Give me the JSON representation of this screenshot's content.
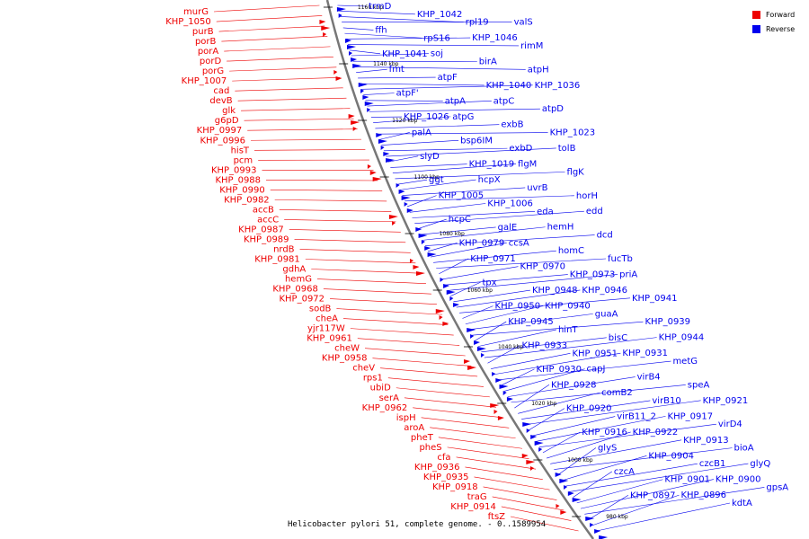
{
  "caption": "Helicobacter pylori 51, complete genome. - 0..1589954",
  "legend": {
    "forward_label": "Forward",
    "reverse_label": "Reverse",
    "forward_color": "#ee0000",
    "reverse_color": "#0000ee"
  },
  "colors": {
    "backbone": "#777777",
    "tick_label": "#000000"
  },
  "position_labels": [
    "1160 kbp",
    "1140 kbp",
    "1120 kbp",
    "1100 kbp",
    "1080 kbp",
    "1060 kbp",
    "1040 kbp",
    "1020 kbp",
    "1000 kbp",
    "980 kbp"
  ],
  "forward_genes": [
    "murG",
    "KHP_1050",
    "purB",
    "porB",
    "porA",
    "porD",
    "porG",
    "KHP_1007",
    "cad",
    "devB",
    "glk",
    "g6pD",
    "KHP_0997",
    "KHP_0996",
    "hisT",
    "pcm",
    "KHP_0993",
    "KHP_0988",
    "KHP_0990",
    "KHP_0982",
    "accB",
    "accC",
    "KHP_0987",
    "KHP_0989",
    "nrdB",
    "KHP_0981",
    "gdhA",
    "hemG",
    "KHP_0968",
    "KHP_0972",
    "sodB",
    "cheA",
    "yjr117W",
    "KHP_0961",
    "cheW",
    "KHP_0958",
    "cheV",
    "rps1",
    "ubiD",
    "serA",
    "KHP_0962",
    "ispH",
    "aroA",
    "pheT",
    "pheS",
    "cfa",
    "KHP_0936",
    "KHP_0935",
    "KHP_0918",
    "traG",
    "KHP_0914",
    "ftsZ"
  ],
  "reverse_genes": [
    "trmD",
    "KHP_1042",
    "rpl19",
    "valS",
    "ffh",
    "rpS16",
    "KHP_1046",
    "rimM",
    "KHP_1041",
    "soj",
    "birA",
    "atpH",
    "fmt",
    "atpF",
    "KHP_1040",
    "KHP_1036",
    "atpF'",
    "atpA",
    "atpC",
    "atpD",
    "KHP_1026",
    "atpG",
    "exbB",
    "KHP_1023",
    "palA",
    "bsp6IM",
    "exbD",
    "tolB",
    "slyD",
    "KHP_1019",
    "flgM",
    "flgK",
    "ggt",
    "hcpX",
    "uvrB",
    "horH",
    "KHP_1005",
    "KHP_1006",
    "eda",
    "edd",
    "hcpC",
    "galE",
    "hemH",
    "dcd",
    "KHP_0979",
    "ccsA",
    "homC",
    "fucTb",
    "KHP_0971",
    "KHP_0970",
    "KHP_0973",
    "priA",
    "tpx",
    "KHP_0948",
    "KHP_0946",
    "KHP_0941",
    "KHP_0950",
    "KHP_0940",
    "guaA",
    "KHP_0939",
    "KHP_0945",
    "hinT",
    "bisC",
    "KHP_0944",
    "KHP_0933",
    "KHP_0951",
    "KHP_0931",
    "metG",
    "KHP_0930",
    "capJ",
    "virB4",
    "speA",
    "KHP_0928",
    "comB2",
    "virB10",
    "KHP_0921",
    "KHP_0920",
    "virB11_2",
    "KHP_0917",
    "virD4",
    "KHP_0916",
    "KHP_0922",
    "KHP_0913",
    "bioA",
    "glyS",
    "KHP_0904",
    "czcB1",
    "glyQ",
    "czcA",
    "KHP_0901",
    "KHP_0900",
    "gpsA",
    "KHP_0897",
    "KHP_0896",
    "kdtA"
  ]
}
